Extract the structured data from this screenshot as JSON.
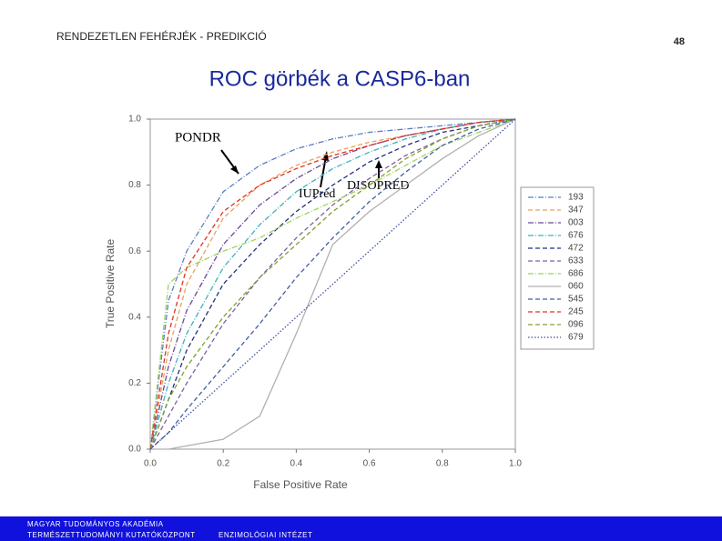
{
  "slide": {
    "header": "RENDEZETLEN FEHÉRJÉK - PREDIKCIÓ",
    "page_number": "48",
    "footer": [
      "MAGYAR TUDOMÁNYOS AKADÉMIA",
      "TERMÉSZETTUDOMÁNYI KUTATÓKÖZPONT",
      "ENZIMOLÓGIAI INTÉZET"
    ]
  },
  "chart_data": {
    "type": "line",
    "title": "ROC görbék a CASP6-ban",
    "x_label": "False Positive Rate",
    "y_label": "True Positive Rate",
    "annotations": [
      "PONDR",
      "IUPred",
      "DISOPRED"
    ],
    "x": [
      0,
      0.05,
      0.1,
      0.2,
      0.3,
      0.4,
      0.5,
      0.6,
      0.7,
      0.8,
      0.9,
      1
    ],
    "series": [
      {
        "name": "193",
        "color": "#5a7fc0",
        "dash": "dash-dot",
        "values": [
          0,
          0.45,
          0.6,
          0.78,
          0.86,
          0.91,
          0.94,
          0.96,
          0.97,
          0.98,
          0.99,
          1
        ]
      },
      {
        "name": "347",
        "color": "#e8a060",
        "dash": "dashed",
        "values": [
          0,
          0.3,
          0.5,
          0.7,
          0.8,
          0.86,
          0.9,
          0.93,
          0.95,
          0.97,
          0.99,
          1
        ]
      },
      {
        "name": "003",
        "color": "#6a4a9a",
        "dash": "dash-dot",
        "values": [
          0,
          0.25,
          0.42,
          0.62,
          0.74,
          0.82,
          0.88,
          0.92,
          0.95,
          0.97,
          0.99,
          1
        ]
      },
      {
        "name": "676",
        "color": "#40b0c0",
        "dash": "dash-dot",
        "values": [
          0,
          0.2,
          0.35,
          0.55,
          0.68,
          0.78,
          0.85,
          0.9,
          0.94,
          0.97,
          0.99,
          1
        ]
      },
      {
        "name": "472",
        "color": "#203080",
        "dash": "dashed",
        "values": [
          0,
          0.15,
          0.3,
          0.5,
          0.62,
          0.72,
          0.8,
          0.87,
          0.92,
          0.96,
          0.98,
          1
        ]
      },
      {
        "name": "633",
        "color": "#8060a0",
        "dash": "dashed",
        "values": [
          0,
          0.1,
          0.2,
          0.38,
          0.52,
          0.64,
          0.74,
          0.82,
          0.89,
          0.94,
          0.98,
          1
        ]
      },
      {
        "name": "686",
        "color": "#a0d060",
        "dash": "dash-dot",
        "values": [
          0,
          0.5,
          0.55,
          0.6,
          0.64,
          0.7,
          0.75,
          0.8,
          0.86,
          0.92,
          0.96,
          1
        ]
      },
      {
        "name": "060",
        "color": "#b0b0b0",
        "dash": "solid",
        "values": [
          0,
          0,
          0.01,
          0.03,
          0.1,
          0.35,
          0.62,
          0.72,
          0.8,
          0.88,
          0.95,
          1
        ]
      },
      {
        "name": "545",
        "color": "#4060a0",
        "dash": "dashed",
        "values": [
          0,
          0.05,
          0.12,
          0.25,
          0.38,
          0.52,
          0.64,
          0.75,
          0.84,
          0.92,
          0.97,
          1
        ]
      },
      {
        "name": "245",
        "color": "#e03020",
        "dash": "dashed",
        "values": [
          0,
          0.35,
          0.55,
          0.72,
          0.8,
          0.85,
          0.89,
          0.92,
          0.95,
          0.97,
          0.99,
          1
        ]
      },
      {
        "name": "096",
        "color": "#80a030",
        "dash": "dashed",
        "values": [
          0,
          0.15,
          0.25,
          0.4,
          0.52,
          0.62,
          0.72,
          0.8,
          0.88,
          0.94,
          0.98,
          1
        ]
      },
      {
        "name": "679",
        "color": "#4050a0",
        "dash": "dotted",
        "values": [
          0,
          0.05,
          0.1,
          0.2,
          0.3,
          0.4,
          0.5,
          0.6,
          0.7,
          0.8,
          0.9,
          1
        ]
      }
    ],
    "xlim": [
      0,
      1
    ],
    "ylim": [
      0,
      1
    ],
    "xticks": [
      {
        "value": 0,
        "label": "0.0"
      },
      0.2,
      0.4,
      0.6,
      0.8,
      {
        "value": 1,
        "label": "1.0"
      }
    ],
    "yticks": [
      {
        "value": 0,
        "label": "0.0"
      },
      0.2,
      0.4,
      0.6,
      0.8,
      {
        "value": 1,
        "label": "1.0"
      }
    ],
    "legend": "right"
  }
}
